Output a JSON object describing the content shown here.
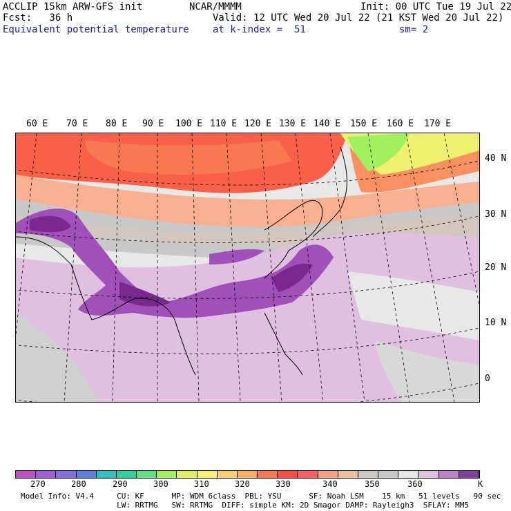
{
  "header": {
    "left1": "ACCLIP 15km ARW-GFS init",
    "left2": "Fcst:   36 h",
    "left3": "Equivalent potential temperature",
    "center1": "NCAR/MMMM",
    "init": "Init: 00 UTC Tue 19 Jul 22",
    "valid": "Valid: 12 UTC Wed 20 Jul 22 (21 KST Wed 20 Jul 22)",
    "level": "at k-index =  51",
    "sm": "sm= 2"
  },
  "longitudes": [
    "60 E",
    "70 E",
    "80 E",
    "90 E",
    "100 E",
    "110 E",
    "120 E",
    "130 E",
    "140 E",
    "150 E",
    "160 E",
    "170 E"
  ],
  "latitudes": [
    "40 N",
    "30 N",
    "20 N",
    "10 N",
    "0"
  ],
  "colorbar": {
    "colors": [
      "#c050c8",
      "#a060d8",
      "#8070e0",
      "#6080e0",
      "#30c0c0",
      "#30d0a0",
      "#60e080",
      "#a0f060",
      "#e0f060",
      "#f8f070",
      "#f8d070",
      "#f8b060",
      "#f87850",
      "#f85040",
      "#f86060",
      "#f8a080",
      "#e8c0a0",
      "#d0c8c0",
      "#c8c8c8",
      "#e8e8e8",
      "#e0c0e0",
      "#c080c8",
      "#8040a0"
    ],
    "labels": [
      "270",
      "280",
      "290",
      "300",
      "310",
      "320",
      "330",
      "340",
      "350",
      "360",
      "K"
    ],
    "units": "K"
  },
  "model_info": {
    "line1": "Model Info: V4.4     CU: KF      MP: WDM 6class  PBL: YSU      SF: Noah LSM    15 km   51 levels   90 sec",
    "line2": "                     LW: RRTMG   SW: RRTMG  DIFF: simple KM: 2D Smagor DAMP: Rayleigh3  SFLAY: MM5"
  }
}
